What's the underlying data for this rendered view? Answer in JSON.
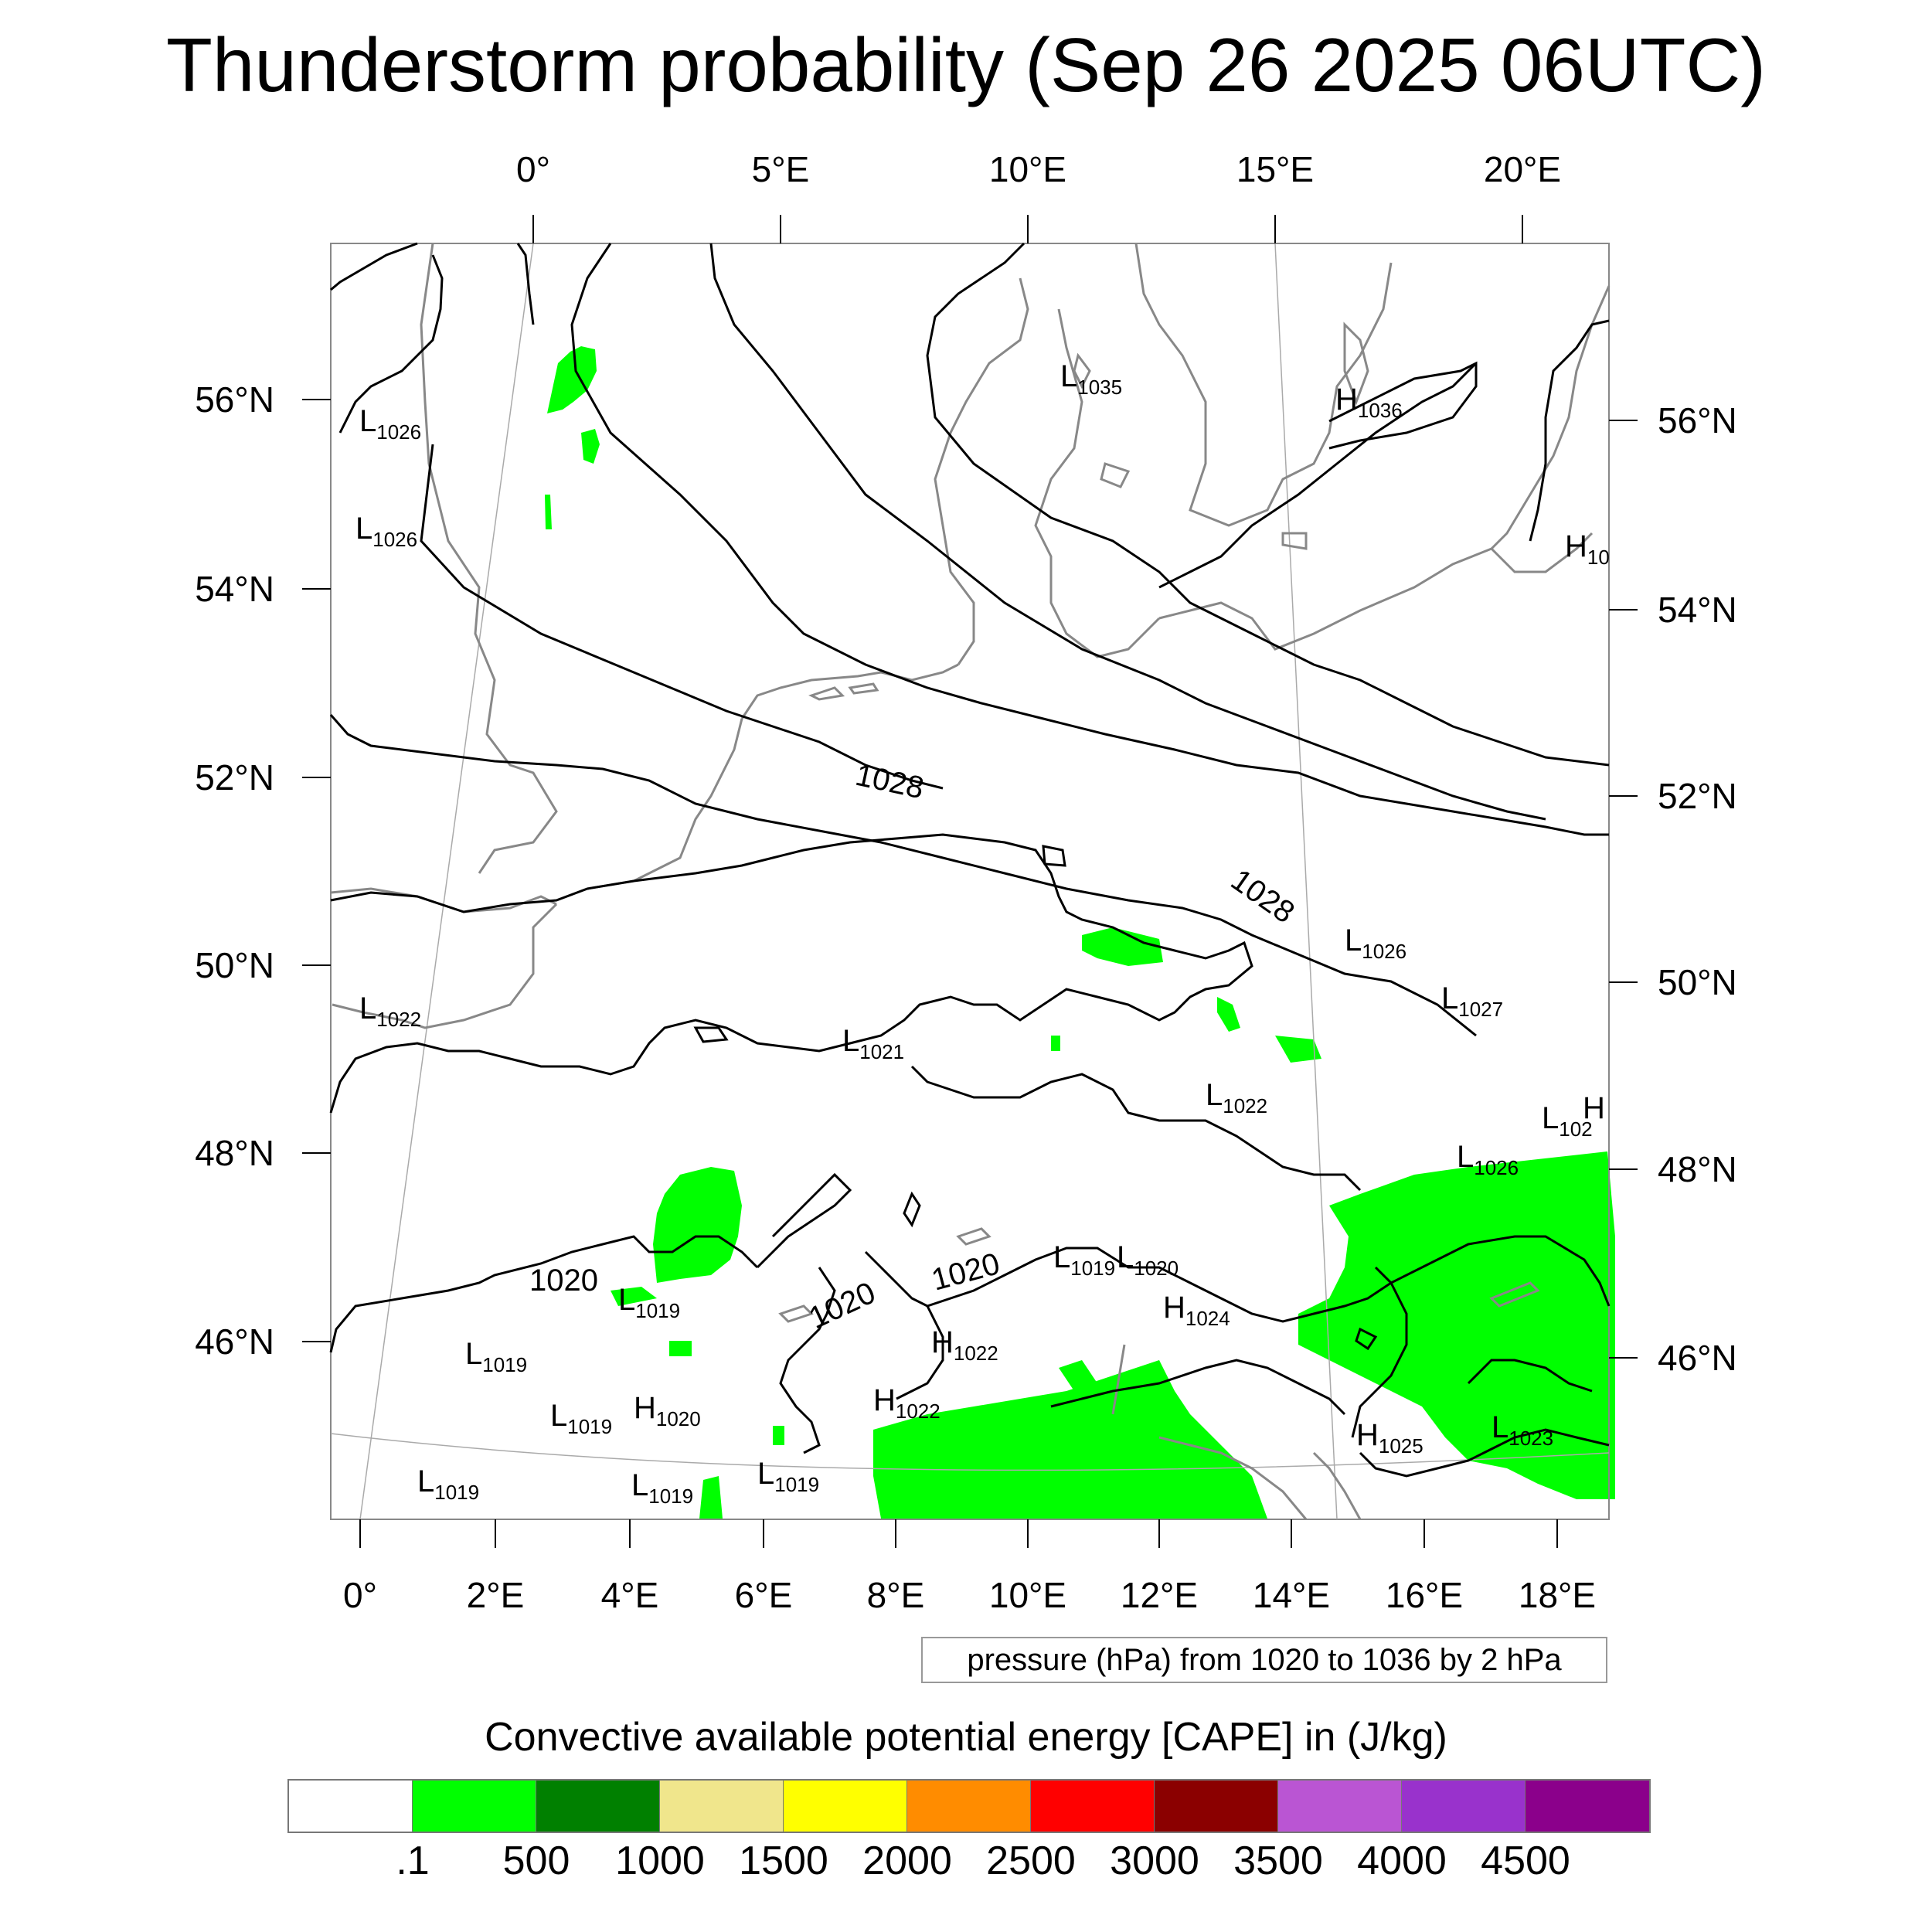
{
  "title": "Thunderstorm probability (Sep 26 2025 06UTC)",
  "top_axis_labels": [
    "0°",
    "5°E",
    "10°E",
    "15°E",
    "20°E"
  ],
  "bottom_axis_labels": [
    "0°",
    "2°E",
    "4°E",
    "6°E",
    "8°E",
    "10°E",
    "12°E",
    "14°E",
    "16°E",
    "18°E"
  ],
  "left_axis_labels": [
    "56°N",
    "54°N",
    "52°N",
    "50°N",
    "48°N",
    "46°N"
  ],
  "right_axis_labels": [
    "56°N",
    "54°N",
    "52°N",
    "50°N",
    "48°N",
    "46°N"
  ],
  "contour_labels": {
    "c1028_a": "1028",
    "c1028_b": "1028",
    "c1020_a": "1020",
    "c1020_b": "1020",
    "c1020_c": "1020"
  },
  "pressure_centers": [
    {
      "letter": "L",
      "value": "1026"
    },
    {
      "letter": "L",
      "value": "1026"
    },
    {
      "letter": "L",
      "value": "1035"
    },
    {
      "letter": "H",
      "value": "1036"
    },
    {
      "letter": "H",
      "value": "10"
    },
    {
      "letter": "L",
      "value": "1026"
    },
    {
      "letter": "L",
      "value": "1027"
    },
    {
      "letter": "L",
      "value": "1022"
    },
    {
      "letter": "L",
      "value": "1021"
    },
    {
      "letter": "L",
      "value": "1022"
    },
    {
      "letter": "L",
      "value": "1026"
    },
    {
      "letter": "L",
      "value": "102"
    },
    {
      "letter": "H",
      "value": ""
    },
    {
      "letter": "L",
      "value": "1019"
    },
    {
      "letter": "L",
      "value": "1019"
    },
    {
      "letter": "L",
      "value": "1020"
    },
    {
      "letter": "H",
      "value": "1024"
    },
    {
      "letter": "H",
      "value": "1022"
    },
    {
      "letter": "H",
      "value": "1022"
    },
    {
      "letter": "L",
      "value": "1019"
    },
    {
      "letter": "L",
      "value": "1019"
    },
    {
      "letter": "H",
      "value": "1020"
    },
    {
      "letter": "L",
      "value": "1019"
    },
    {
      "letter": "L",
      "value": "1019"
    },
    {
      "letter": "L",
      "value": "1019"
    },
    {
      "letter": "H",
      "value": "1025"
    },
    {
      "letter": "L",
      "value": "1023"
    }
  ],
  "pressure_note": "pressure (hPa) from 1020 to 1036 by 2 hPa",
  "cape_title": "Convective available potential energy [CAPE] in (J/kg)",
  "colorbar": {
    "colors": [
      "#ffffff",
      "#00ff00",
      "#008000",
      "#f0e68c",
      "#ffff00",
      "#ff8c00",
      "#ff0000",
      "#8b0000",
      "#ba55d3",
      "#9932cc",
      "#8b008b"
    ],
    "tick_labels": [
      ".1",
      "500",
      "1000",
      "1500",
      "2000",
      "2500",
      "3000",
      "3500",
      "4000",
      "4500"
    ]
  },
  "colors": {
    "cape_fill": "#00ff00",
    "coastline": "#888888",
    "isobar": "#000000"
  }
}
